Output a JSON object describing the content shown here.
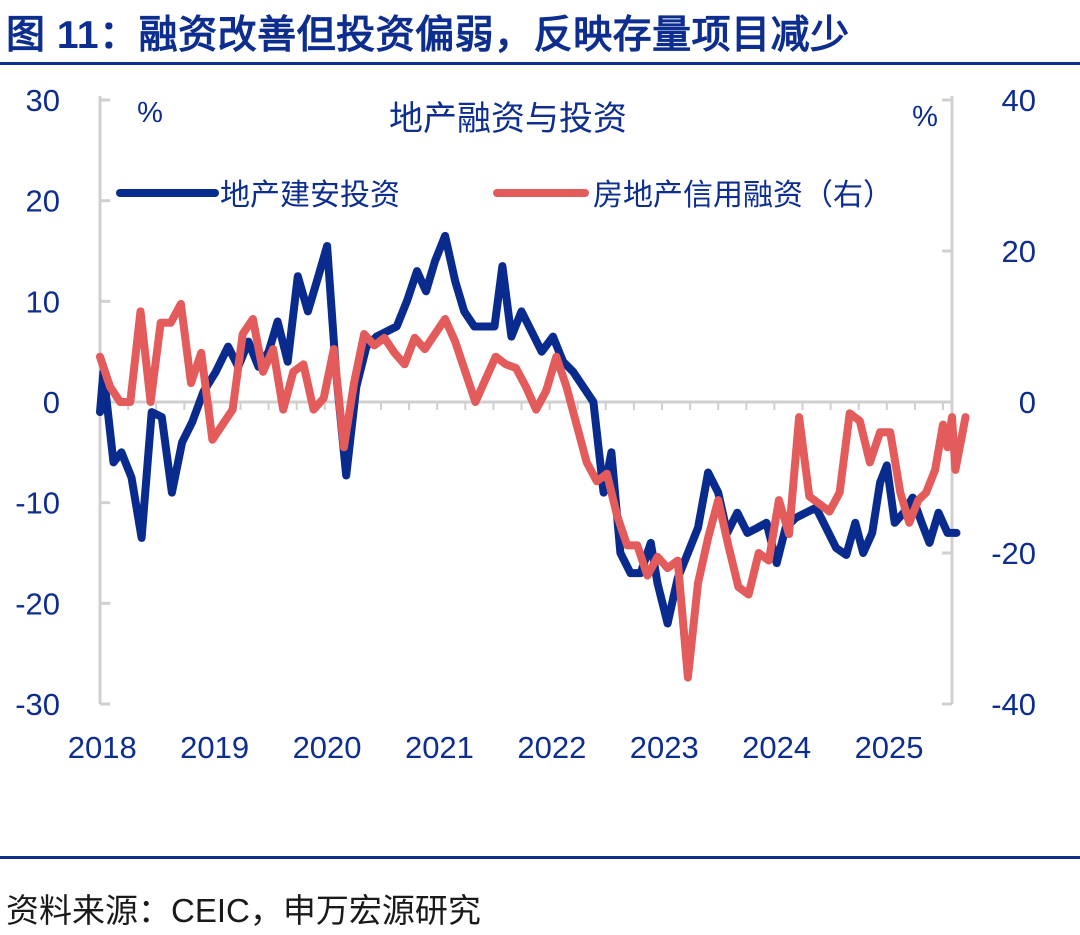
{
  "header": {
    "title": "图 11：融资改善但投资偏弱，反映存量项目减少"
  },
  "footer": {
    "source": "资料来源：CEIC，申万宏源研究"
  },
  "colors": {
    "title": "#0d2e8f",
    "series_1": "#0a2b8e",
    "series_2": "#e35b5b",
    "axis": "#d0d0d0"
  },
  "chart_data": {
    "type": "line",
    "title": "地产融资与投资",
    "left_unit": "%",
    "right_unit": "%",
    "x_ticks": [
      "2018",
      "2019",
      "2020",
      "2021",
      "2022",
      "2023",
      "2024",
      "2025"
    ],
    "x_range": [
      2018.0,
      2025.58
    ],
    "y_left": {
      "range": [
        -30,
        30
      ],
      "ticks": [
        "30",
        "20",
        "10",
        "0",
        "-10",
        "-20",
        "-30"
      ],
      "tick_values": [
        30,
        20,
        10,
        0,
        -10,
        -20,
        -30
      ]
    },
    "y_right": {
      "range": [
        -40,
        40
      ],
      "ticks": [
        "40",
        "20",
        "0",
        "-20",
        "-40"
      ],
      "tick_values": [
        40,
        20,
        0,
        -20,
        -40
      ]
    },
    "legend_position": "top",
    "series": [
      {
        "name": "地产建安投资",
        "axis": "left",
        "color": "#0a2b8e",
        "points": [
          [
            2018.0,
            -1
          ],
          [
            2018.03,
            3
          ],
          [
            2018.12,
            -6
          ],
          [
            2018.19,
            -5
          ],
          [
            2018.28,
            -7.5
          ],
          [
            2018.37,
            -13.5
          ],
          [
            2018.46,
            -1
          ],
          [
            2018.55,
            -1.5
          ],
          [
            2018.64,
            -9
          ],
          [
            2018.73,
            -4
          ],
          [
            2018.82,
            -2
          ],
          [
            2018.92,
            1
          ],
          [
            2019.03,
            3
          ],
          [
            2019.14,
            5.5
          ],
          [
            2019.23,
            3.5
          ],
          [
            2019.32,
            6
          ],
          [
            2019.41,
            3.5
          ],
          [
            2019.5,
            5
          ],
          [
            2019.58,
            8
          ],
          [
            2019.67,
            4
          ],
          [
            2019.76,
            12.5
          ],
          [
            2019.85,
            9
          ],
          [
            2019.93,
            12
          ],
          [
            2020.02,
            15.5
          ],
          [
            2020.1,
            3
          ],
          [
            2020.19,
            -7.3
          ],
          [
            2020.28,
            1.5
          ],
          [
            2020.37,
            5.5
          ],
          [
            2020.46,
            6.5
          ],
          [
            2020.55,
            7
          ],
          [
            2020.64,
            7.5
          ],
          [
            2020.73,
            10
          ],
          [
            2020.82,
            13
          ],
          [
            2020.9,
            11
          ],
          [
            2020.98,
            14
          ],
          [
            2021.07,
            16.5
          ],
          [
            2021.16,
            12
          ],
          [
            2021.24,
            9
          ],
          [
            2021.33,
            7.5
          ],
          [
            2021.42,
            7.5
          ],
          [
            2021.51,
            7.5
          ],
          [
            2021.58,
            13.5
          ],
          [
            2021.66,
            6.5
          ],
          [
            2021.75,
            9
          ],
          [
            2021.84,
            7
          ],
          [
            2021.93,
            5
          ],
          [
            2022.03,
            6.5
          ],
          [
            2022.12,
            4
          ],
          [
            2022.21,
            3
          ],
          [
            2022.3,
            1.5
          ],
          [
            2022.39,
            0
          ],
          [
            2022.48,
            -9
          ],
          [
            2022.55,
            -5
          ],
          [
            2022.63,
            -15
          ],
          [
            2022.72,
            -17
          ],
          [
            2022.81,
            -17
          ],
          [
            2022.9,
            -14
          ],
          [
            2022.96,
            -18
          ],
          [
            2023.05,
            -22
          ],
          [
            2023.14,
            -17.5
          ],
          [
            2023.23,
            -15
          ],
          [
            2023.32,
            -12.5
          ],
          [
            2023.41,
            -7
          ],
          [
            2023.5,
            -9
          ],
          [
            2023.58,
            -13
          ],
          [
            2023.67,
            -11
          ],
          [
            2023.76,
            -13
          ],
          [
            2023.85,
            -12.5
          ],
          [
            2023.93,
            -12
          ],
          [
            2024.02,
            -16
          ],
          [
            2024.1,
            -12.5
          ],
          [
            2024.19,
            -11.5
          ],
          [
            2024.28,
            -11
          ],
          [
            2024.37,
            -10.5
          ],
          [
            2024.46,
            -12.5
          ],
          [
            2024.55,
            -14.5
          ],
          [
            2024.64,
            -15.2
          ],
          [
            2024.72,
            -12
          ],
          [
            2024.79,
            -15
          ],
          [
            2024.87,
            -13
          ],
          [
            2024.94,
            -8
          ],
          [
            2025.0,
            -6.3
          ],
          [
            2025.07,
            -12
          ],
          [
            2025.15,
            -11
          ],
          [
            2025.23,
            -9.5
          ],
          [
            2025.31,
            -12
          ],
          [
            2025.38,
            -14
          ],
          [
            2025.46,
            -11
          ],
          [
            2025.54,
            -13
          ],
          [
            2025.62,
            -13
          ]
        ]
      },
      {
        "name": "房地产信用融资（右）",
        "axis": "right",
        "color": "#e35b5b",
        "points": [
          [
            2018.0,
            6
          ],
          [
            2018.09,
            2
          ],
          [
            2018.18,
            0
          ],
          [
            2018.27,
            0
          ],
          [
            2018.36,
            12
          ],
          [
            2018.45,
            0
          ],
          [
            2018.54,
            10.5
          ],
          [
            2018.63,
            10.5
          ],
          [
            2018.72,
            13
          ],
          [
            2018.81,
            2.5
          ],
          [
            2018.9,
            6.5
          ],
          [
            2019.0,
            -5
          ],
          [
            2019.09,
            -3
          ],
          [
            2019.18,
            -1
          ],
          [
            2019.27,
            9
          ],
          [
            2019.36,
            11
          ],
          [
            2019.45,
            4
          ],
          [
            2019.54,
            7
          ],
          [
            2019.63,
            -1
          ],
          [
            2019.72,
            4
          ],
          [
            2019.81,
            5
          ],
          [
            2019.9,
            -1
          ],
          [
            2019.99,
            0.5
          ],
          [
            2020.08,
            7
          ],
          [
            2020.17,
            -6
          ],
          [
            2020.26,
            2.5
          ],
          [
            2020.35,
            9
          ],
          [
            2020.44,
            7.5
          ],
          [
            2020.53,
            8.5
          ],
          [
            2020.62,
            6.5
          ],
          [
            2020.71,
            5
          ],
          [
            2020.8,
            8.5
          ],
          [
            2020.89,
            7
          ],
          [
            2020.98,
            9
          ],
          [
            2021.07,
            11
          ],
          [
            2021.16,
            8
          ],
          [
            2021.25,
            4
          ],
          [
            2021.34,
            0
          ],
          [
            2021.43,
            3
          ],
          [
            2021.52,
            6
          ],
          [
            2021.61,
            5
          ],
          [
            2021.7,
            4.5
          ],
          [
            2021.79,
            2
          ],
          [
            2021.88,
            -1
          ],
          [
            2021.97,
            1.5
          ],
          [
            2022.06,
            6
          ],
          [
            2022.15,
            2
          ],
          [
            2022.24,
            -3
          ],
          [
            2022.33,
            -8
          ],
          [
            2022.42,
            -10.5
          ],
          [
            2022.51,
            -9.5
          ],
          [
            2022.6,
            -15
          ],
          [
            2022.69,
            -19
          ],
          [
            2022.78,
            -19
          ],
          [
            2022.87,
            -23
          ],
          [
            2022.96,
            -20.5
          ],
          [
            2023.05,
            -22
          ],
          [
            2023.14,
            -21
          ],
          [
            2023.23,
            -36.5
          ],
          [
            2023.32,
            -24
          ],
          [
            2023.41,
            -18
          ],
          [
            2023.5,
            -13
          ],
          [
            2023.59,
            -19
          ],
          [
            2023.68,
            -24.5
          ],
          [
            2023.77,
            -25.5
          ],
          [
            2023.86,
            -20
          ],
          [
            2023.95,
            -21
          ],
          [
            2024.04,
            -13
          ],
          [
            2024.13,
            -17.5
          ],
          [
            2024.22,
            -2
          ],
          [
            2024.31,
            -12.5
          ],
          [
            2024.4,
            -13.5
          ],
          [
            2024.49,
            -14.5
          ],
          [
            2024.58,
            -12
          ],
          [
            2024.67,
            -1.5
          ],
          [
            2024.76,
            -2.5
          ],
          [
            2024.85,
            -8
          ],
          [
            2024.94,
            -4
          ],
          [
            2025.03,
            -4
          ],
          [
            2025.12,
            -12
          ],
          [
            2025.2,
            -16
          ],
          [
            2025.28,
            -13
          ],
          [
            2025.35,
            -12
          ],
          [
            2025.43,
            -9
          ],
          [
            2025.5,
            -3
          ],
          [
            2025.54,
            -6
          ],
          [
            2025.58,
            -2
          ],
          [
            2025.61,
            -9
          ],
          [
            2025.7,
            -2
          ]
        ]
      }
    ]
  }
}
